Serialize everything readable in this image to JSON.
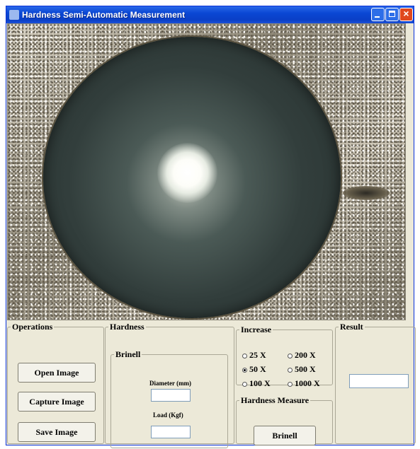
{
  "window": {
    "title": "Hardness Semi-Automatic Measurement",
    "controls": [
      "minimize-icon",
      "maximize-icon",
      "close-icon"
    ]
  },
  "image_panel": {
    "description_icon": "indentation-image"
  },
  "operations": {
    "legend": "Operations",
    "buttons": [
      "Open Image",
      "Capture Image",
      "Save Image"
    ]
  },
  "hardness": {
    "legend": "Hardness",
    "brinell": {
      "legend": "Brinell",
      "diameter_label": "Diameter (mm)",
      "diameter_value": "",
      "load_label": "Load (Kgf)",
      "load_value": ""
    }
  },
  "increase": {
    "legend": "Increase",
    "options": [
      {
        "label": "25 X",
        "selected": false
      },
      {
        "label": "200 X",
        "selected": false
      },
      {
        "label": "50 X",
        "selected": true
      },
      {
        "label": "500 X",
        "selected": false
      },
      {
        "label": "100 X",
        "selected": false
      },
      {
        "label": "1000 X",
        "selected": false
      }
    ]
  },
  "hardness_measure": {
    "legend": "Hardness Measure",
    "button": "Brinell"
  },
  "result": {
    "legend": "Result",
    "value": ""
  },
  "colors": {
    "titlebar": "#0a47d4",
    "window_bg": "#ece9d8",
    "close_button": "#e0481e"
  }
}
